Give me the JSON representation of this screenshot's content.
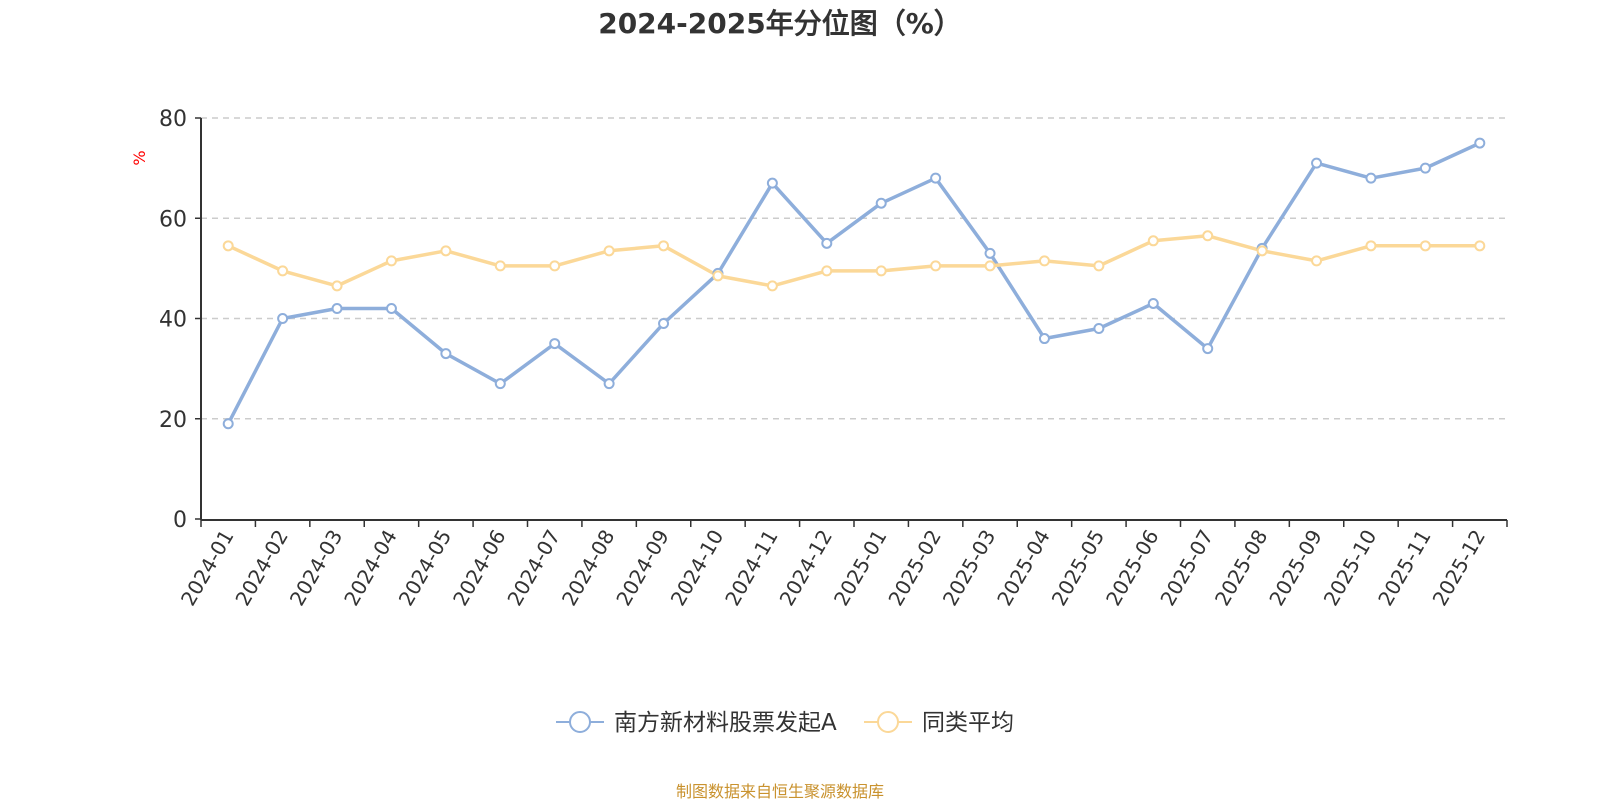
{
  "title": "2024-2025年分位图（%）",
  "footer": "制图数据来自恒生聚源数据库",
  "chart_data": {
    "type": "line",
    "title": "2024-2025年分位图（%）",
    "ylabel": "%",
    "xlabel": "",
    "ylim": [
      0,
      80
    ],
    "yticks": [
      0,
      20,
      40,
      60,
      80
    ],
    "grid": true,
    "legend_position": "bottom",
    "categories": [
      "2024-01",
      "2024-02",
      "2024-03",
      "2024-04",
      "2024-05",
      "2024-06",
      "2024-07",
      "2024-08",
      "2024-09",
      "2024-10",
      "2024-11",
      "2024-12",
      "2025-01",
      "2025-02",
      "2025-03",
      "2025-04",
      "2025-05",
      "2025-06",
      "2025-07",
      "2025-08",
      "2025-09",
      "2025-10",
      "2025-11",
      "2025-12"
    ],
    "series": [
      {
        "name": "南方新材料股票发起A",
        "color": "#8eaedb",
        "values": [
          19,
          40,
          42,
          42,
          33,
          27,
          35,
          27,
          39,
          49,
          67,
          55,
          63,
          68,
          53,
          36,
          38,
          43,
          34,
          54,
          71,
          68,
          70,
          75
        ]
      },
      {
        "name": "同类平均",
        "color": "#fbd898",
        "values": [
          54.5,
          49.5,
          46.5,
          51.5,
          53.5,
          50.5,
          50.5,
          53.5,
          54.5,
          48.5,
          46.5,
          49.5,
          49.5,
          50.5,
          50.5,
          51.5,
          50.5,
          55.5,
          56.5,
          53.5,
          51.5,
          54.5,
          54.5,
          54.5
        ]
      }
    ]
  }
}
